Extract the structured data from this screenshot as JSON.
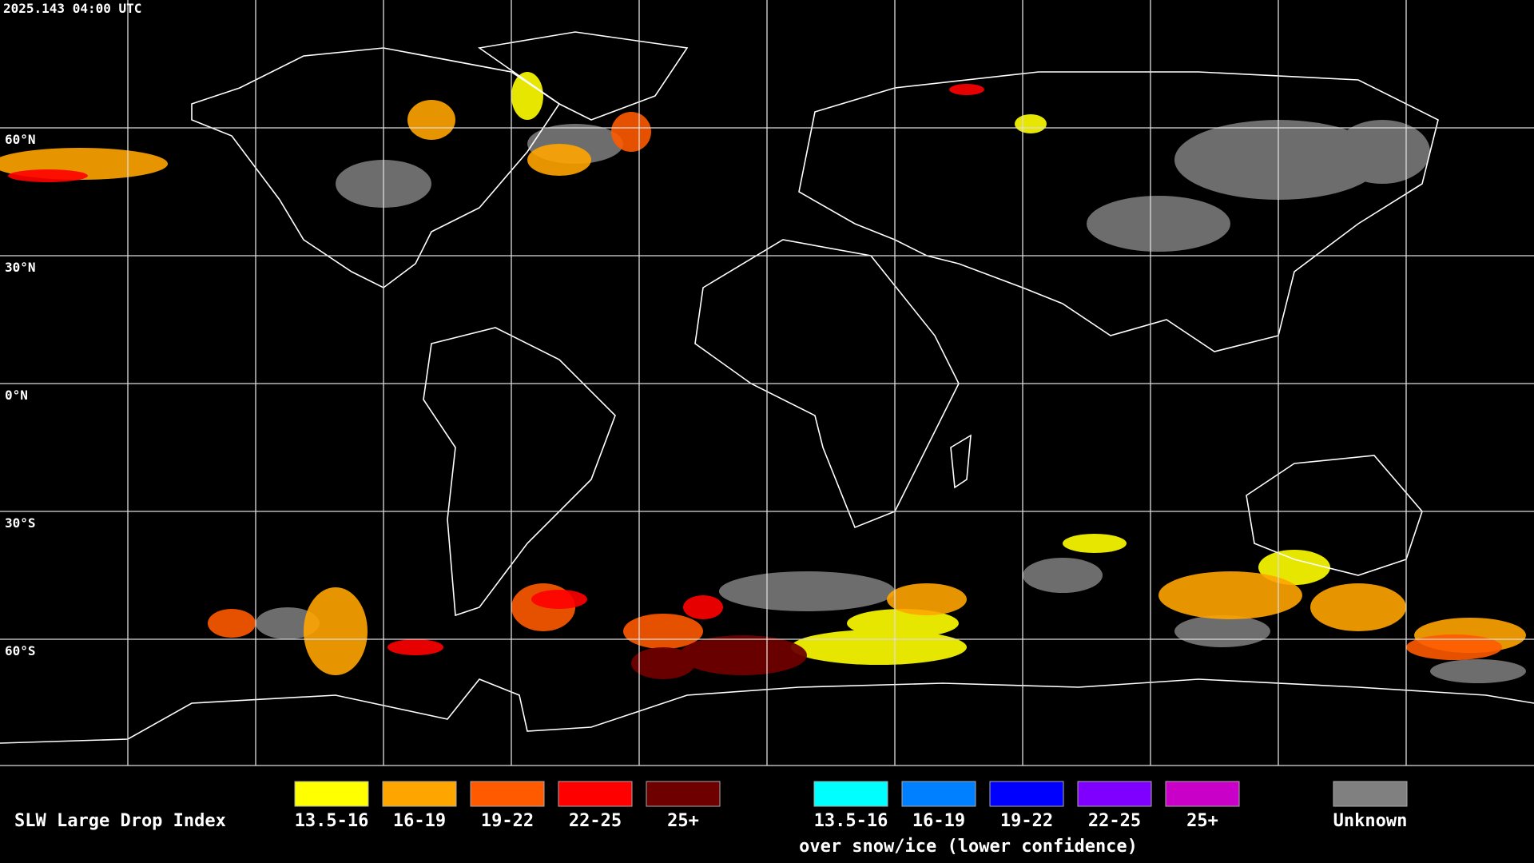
{
  "timestamp": "2025.143 04:00 UTC",
  "latitude_labels": [
    "60°N",
    "30°N",
    "0°N",
    "30°S",
    "60°S"
  ],
  "legend": {
    "title": "SLW Large Drop Index",
    "classes": [
      {
        "label": "13.5-16",
        "color": "#ffff00"
      },
      {
        "label": "16-19",
        "color": "#ffa500"
      },
      {
        "label": "19-22",
        "color": "#ff5a00"
      },
      {
        "label": "22-25",
        "color": "#ff0000"
      },
      {
        "label": "25+",
        "color": "#6e0000"
      }
    ],
    "snow_ice_classes": [
      {
        "label": "13.5-16",
        "color": "#00ffff"
      },
      {
        "label": "16-19",
        "color": "#0080ff"
      },
      {
        "label": "19-22",
        "color": "#0000ff"
      },
      {
        "label": "22-25",
        "color": "#8000ff"
      },
      {
        "label": "25+",
        "color": "#c800c8"
      }
    ],
    "snow_ice_note": "over snow/ice (lower confidence)",
    "unknown": {
      "label": "Unknown",
      "color": "#808080"
    }
  }
}
